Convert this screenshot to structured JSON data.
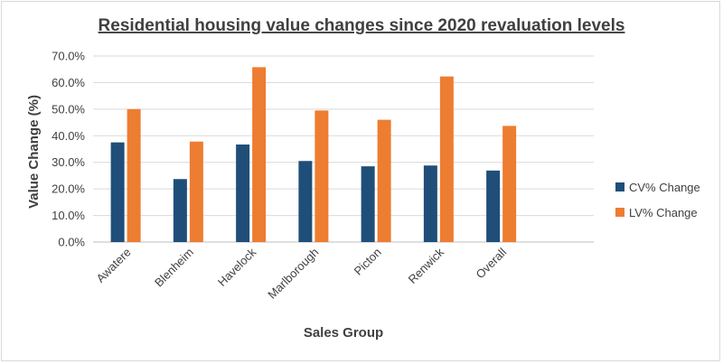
{
  "chart_data": {
    "type": "bar",
    "title": "Residential housing value changes since 2020 revaluation levels",
    "xlabel": "Sales Group",
    "ylabel": "Value Change (%)",
    "ylim": [
      0,
      70
    ],
    "yticks": [
      0,
      10,
      20,
      30,
      40,
      50,
      60,
      70
    ],
    "ytick_labels": [
      "0.0%",
      "10.0%",
      "20.0%",
      "30.0%",
      "40.0%",
      "50.0%",
      "60.0%",
      "70.0%"
    ],
    "grid": true,
    "legend_position": "right",
    "categories": [
      "Awatere",
      "Blenheim",
      "Havelock",
      "Marlborough",
      "Picton",
      "Renwick",
      "Overall"
    ],
    "series": [
      {
        "name": "CV% Change",
        "color": "#1f4e79",
        "values": [
          37.5,
          23.7,
          36.7,
          30.5,
          28.5,
          28.8,
          26.9
        ]
      },
      {
        "name": "LV% Change",
        "color": "#ed7d31",
        "values": [
          50.0,
          37.8,
          65.8,
          49.5,
          46.0,
          62.3,
          43.7
        ]
      }
    ]
  }
}
